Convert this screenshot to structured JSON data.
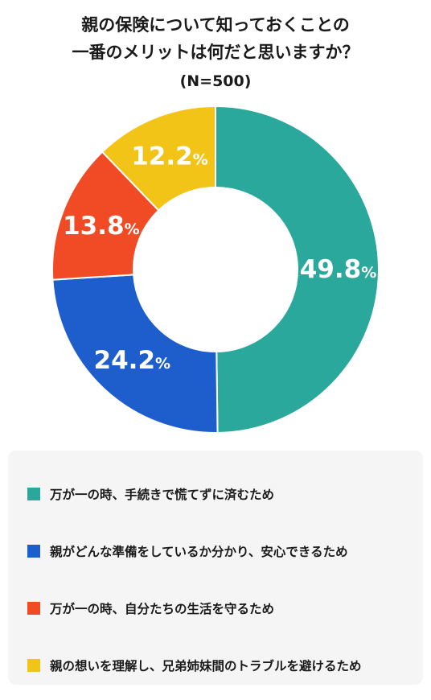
{
  "title_line1": "親の保険について知っておくことの",
  "title_line2": "一番のメリットは何だと思いますか？",
  "subtitle": "(N=500)",
  "chart_data": {
    "type": "pie",
    "title": "親の保険について知っておくことの一番のメリットは何だと思いますか？",
    "subtitle": "(N=500)",
    "categories": [
      "万が一の時、手続きで慌てずに済むため",
      "親がどんな準備をしているか分かり、安心できるため",
      "万が一の時、自分たちの生活を守るため",
      "親の想いを理解し、兄弟姉妹間のトラブルを避けるため"
    ],
    "values": [
      49.8,
      24.2,
      13.8,
      12.2
    ],
    "unit": "%",
    "labels": [
      "49.8",
      "24.2",
      "13.8",
      "12.2"
    ],
    "colors": [
      "#2aa89b",
      "#1e5ecc",
      "#f04b25",
      "#f2c417"
    ],
    "donut": true,
    "legend_position": "bottom"
  }
}
